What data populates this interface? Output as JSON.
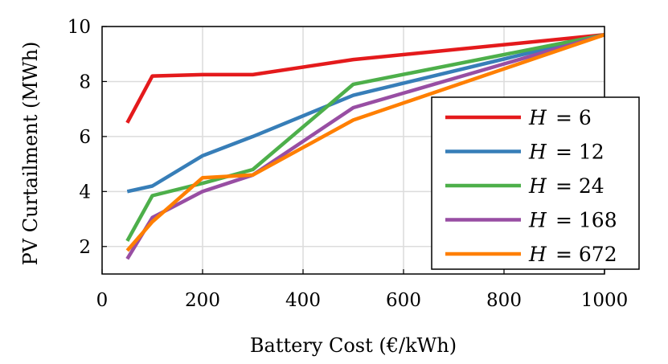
{
  "chart_data": {
    "type": "line",
    "title": "",
    "xlabel": "Battery Cost (€/kWh)",
    "ylabel": "PV Curtailment (MWh)",
    "xlim": [
      0,
      1000
    ],
    "ylim": [
      1,
      10
    ],
    "xticks": [
      0,
      200,
      400,
      600,
      800,
      1000
    ],
    "yticks": [
      2,
      4,
      6,
      8,
      10
    ],
    "grid": true,
    "legend_position": "right",
    "x": [
      50,
      100,
      200,
      300,
      500,
      1000
    ],
    "series": [
      {
        "name": "H = 6",
        "var": "H",
        "eq": "= 6",
        "color": "#e41a1c",
        "values": [
          6.5,
          8.2,
          8.25,
          8.25,
          8.8,
          9.7
        ]
      },
      {
        "name": "H = 12",
        "var": "H",
        "eq": "= 12",
        "color": "#377eb8",
        "values": [
          4.0,
          4.2,
          5.3,
          6.0,
          7.5,
          9.7
        ]
      },
      {
        "name": "H = 24",
        "var": "H",
        "eq": "= 24",
        "color": "#4daf4a",
        "values": [
          2.2,
          3.85,
          4.3,
          4.8,
          7.9,
          9.7
        ]
      },
      {
        "name": "H = 168",
        "var": "H",
        "eq": "= 168",
        "color": "#984ea3",
        "values": [
          1.55,
          3.05,
          4.0,
          4.6,
          7.05,
          9.7
        ]
      },
      {
        "name": "H = 672",
        "var": "H",
        "eq": "= 672",
        "color": "#ff7f00",
        "values": [
          1.85,
          2.9,
          4.5,
          4.6,
          6.6,
          9.7
        ]
      }
    ]
  }
}
